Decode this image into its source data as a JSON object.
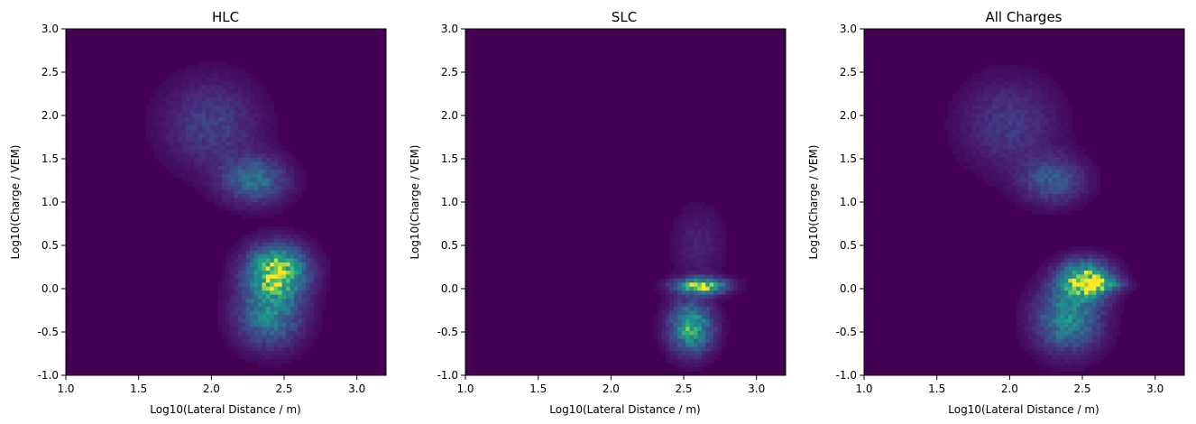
{
  "chart_data": [
    {
      "type": "heatmap",
      "title": "HLC",
      "xlabel": "Log10(Lateral Distance / m)",
      "ylabel": "Log10(Charge / VEM)",
      "xlim": [
        1.0,
        3.2
      ],
      "ylim": [
        -1.0,
        3.0
      ],
      "xticks": [
        "1.0",
        "1.5",
        "2.0",
        "2.5",
        "3.0"
      ],
      "yticks": [
        "-1.0",
        "-0.5",
        "0.0",
        "0.5",
        "1.0",
        "1.5",
        "2.0",
        "2.5",
        "3.0"
      ],
      "colormap": "viridis",
      "background": "#440154",
      "density_blobs": [
        {
          "x": 2.0,
          "y": 1.9,
          "sx": 0.22,
          "sy": 0.35,
          "w": 0.25
        },
        {
          "x": 2.3,
          "y": 1.25,
          "sx": 0.15,
          "sy": 0.18,
          "w": 0.45
        },
        {
          "x": 2.45,
          "y": 0.2,
          "sx": 0.14,
          "sy": 0.2,
          "w": 0.95
        },
        {
          "x": 2.4,
          "y": -0.3,
          "sx": 0.15,
          "sy": 0.25,
          "w": 0.55
        }
      ]
    },
    {
      "type": "heatmap",
      "title": "SLC",
      "xlabel": "Log10(Lateral Distance / m)",
      "ylabel": "Log10(Charge / VEM)",
      "xlim": [
        1.0,
        3.2
      ],
      "ylim": [
        -1.0,
        3.0
      ],
      "xticks": [
        "1.0",
        "1.5",
        "2.0",
        "2.5",
        "3.0"
      ],
      "yticks": [
        "-1.0",
        "-0.5",
        "0.0",
        "0.5",
        "1.0",
        "1.5",
        "2.0",
        "2.5",
        "3.0"
      ],
      "colormap": "viridis",
      "background": "#440154",
      "density_blobs": [
        {
          "x": 2.62,
          "y": 0.03,
          "sx": 0.12,
          "sy": 0.06,
          "w": 0.95
        },
        {
          "x": 2.55,
          "y": -0.45,
          "sx": 0.1,
          "sy": 0.2,
          "w": 0.75
        },
        {
          "x": 2.6,
          "y": 0.5,
          "sx": 0.12,
          "sy": 0.3,
          "w": 0.12
        }
      ]
    },
    {
      "type": "heatmap",
      "title": "All Charges",
      "xlabel": "Log10(Lateral Distance / m)",
      "ylabel": "Log10(Charge / VEM)",
      "xlim": [
        1.0,
        3.2
      ],
      "ylim": [
        -1.0,
        3.0
      ],
      "xticks": [
        "1.0",
        "1.5",
        "2.0",
        "2.5",
        "3.0"
      ],
      "yticks": [
        "-1.0",
        "-0.5",
        "0.0",
        "0.5",
        "1.0",
        "1.5",
        "2.0",
        "2.5",
        "3.0"
      ],
      "colormap": "viridis",
      "background": "#440154",
      "density_blobs": [
        {
          "x": 2.0,
          "y": 1.9,
          "sx": 0.22,
          "sy": 0.35,
          "w": 0.22
        },
        {
          "x": 2.3,
          "y": 1.25,
          "sx": 0.15,
          "sy": 0.18,
          "w": 0.35
        },
        {
          "x": 2.52,
          "y": 0.1,
          "sx": 0.12,
          "sy": 0.15,
          "w": 0.95
        },
        {
          "x": 2.4,
          "y": -0.35,
          "sx": 0.15,
          "sy": 0.25,
          "w": 0.6
        },
        {
          "x": 2.65,
          "y": 0.05,
          "sx": 0.1,
          "sy": 0.05,
          "w": 0.4
        }
      ]
    }
  ]
}
